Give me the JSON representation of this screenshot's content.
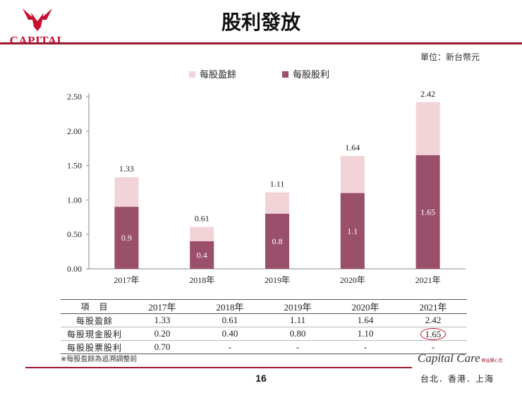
{
  "header": {
    "logo_text": "CAPITAL",
    "title": "股利發放",
    "unit": "單位：新台幣元"
  },
  "colors": {
    "eps": "#f2d4d8",
    "dividend": "#9a4f6b",
    "accent": "#9b1b30",
    "logo": "#c8102e"
  },
  "chart_data": {
    "type": "bar",
    "stacked": "overlay",
    "categories": [
      "2017年",
      "2018年",
      "2019年",
      "2020年",
      "2021年"
    ],
    "series": [
      {
        "name": "每股盈餘",
        "values": [
          1.33,
          0.61,
          1.11,
          1.64,
          2.42
        ]
      },
      {
        "name": "每股股利",
        "values": [
          0.9,
          0.4,
          0.8,
          1.1,
          1.65
        ]
      }
    ],
    "eps_labels": [
      "1.33",
      "0.61",
      "1.11",
      "1.64",
      "2.42"
    ],
    "dividend_labels": [
      "0.9",
      "0.4",
      "0.8",
      "1.1",
      "1.65"
    ],
    "yticks": [
      "0.00",
      "0.50",
      "1.00",
      "1.50",
      "2.00",
      "2.50"
    ],
    "ylim": [
      0,
      2.5
    ],
    "legend_position": "top-left",
    "grid": false
  },
  "table": {
    "header_label": "項　目",
    "years": [
      "2017年",
      "2018年",
      "2019年",
      "2020年",
      "2021年"
    ],
    "rows": [
      {
        "label": "每股盈餘",
        "values": [
          "1.33",
          "0.61",
          "1.11",
          "1.64",
          "2.42"
        ]
      },
      {
        "label": "每股現金股利",
        "values": [
          "0.20",
          "0.40",
          "0.80",
          "1.10",
          "1.65"
        ]
      },
      {
        "label": "每股股票股利",
        "values": [
          "0.70",
          "-",
          "-",
          "-",
          "-"
        ]
      }
    ]
  },
  "footer": {
    "note": "※每股盈餘為追溯調整前",
    "page_number": "16",
    "brand": "Capital Care",
    "brand_sub": "群益關心您",
    "cities": "台北．香港．上海"
  }
}
